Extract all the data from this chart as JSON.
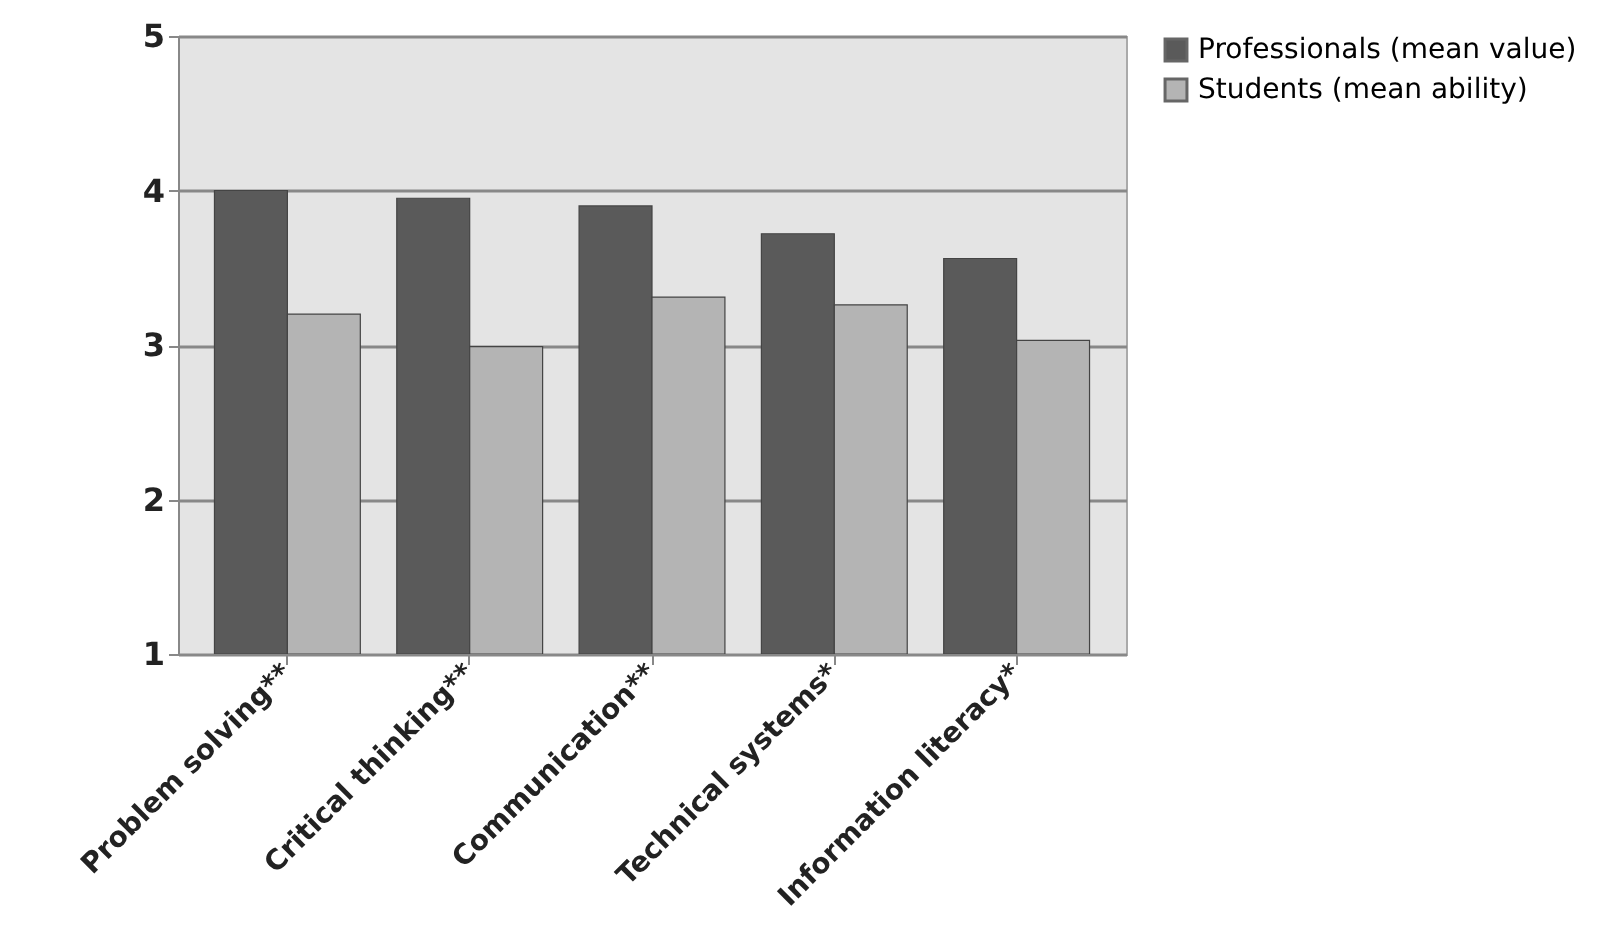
{
  "chart_data": {
    "type": "bar",
    "categories": [
      "Problem solving**",
      "Critical thinking**",
      "Communication**",
      "Technical systems*",
      "Information literacy*"
    ],
    "series": [
      {
        "name": "Professionals (mean value)",
        "color": "#5a5a5a",
        "values": [
          4.0,
          3.95,
          3.9,
          3.72,
          3.56
        ]
      },
      {
        "name": "Students (mean ability)",
        "color": "#b4b4b4",
        "values": [
          3.2,
          2.99,
          3.31,
          3.26,
          3.03
        ]
      }
    ],
    "ylim": [
      1,
      5
    ],
    "yticks": [
      1,
      2,
      3,
      4,
      5
    ],
    "grid": "y",
    "legend": "right"
  }
}
